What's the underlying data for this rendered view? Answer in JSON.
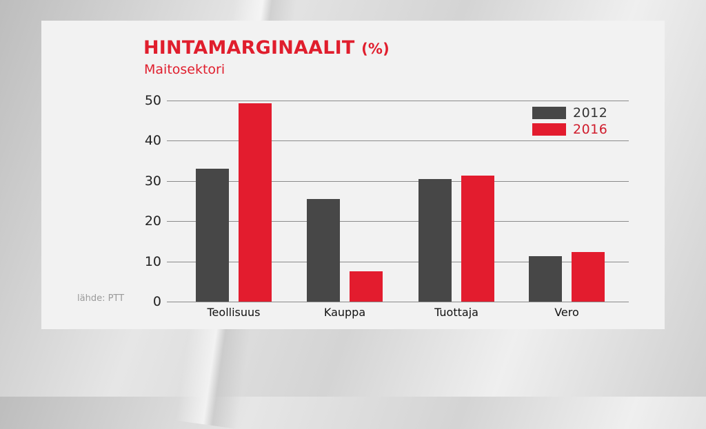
{
  "header": {
    "title": "HINTAMARGINAALIT",
    "title_unit": "(%)",
    "subtitle": "Maitosektori"
  },
  "source": "lähde: PTT",
  "colors": {
    "series_2012": "#474747",
    "series_2016": "#e31c2e",
    "title": "#e01e2d"
  },
  "legend": [
    {
      "label": "2012",
      "color": "#474747",
      "text_color": "#333333"
    },
    {
      "label": "2016",
      "color": "#e31c2e",
      "text_color": "#d01c2c"
    }
  ],
  "chart_data": {
    "type": "bar",
    "title": "HINTAMARGINAALIT (%)",
    "subtitle": "Maitosektori",
    "xlabel": "",
    "ylabel": "",
    "categories": [
      "Teollisuus",
      "Kauppa",
      "Tuottaja",
      "Vero"
    ],
    "series": [
      {
        "name": "2012",
        "values": [
          33.0,
          25.6,
          30.5,
          11.3
        ]
      },
      {
        "name": "2016",
        "values": [
          49.3,
          7.5,
          31.3,
          12.4
        ]
      }
    ],
    "ylim": [
      0,
      50
    ],
    "yticks": [
      0,
      10,
      20,
      30,
      40,
      50
    ],
    "grid": true,
    "legend_position": "top-right",
    "annotations": [
      "lähde: PTT"
    ]
  }
}
